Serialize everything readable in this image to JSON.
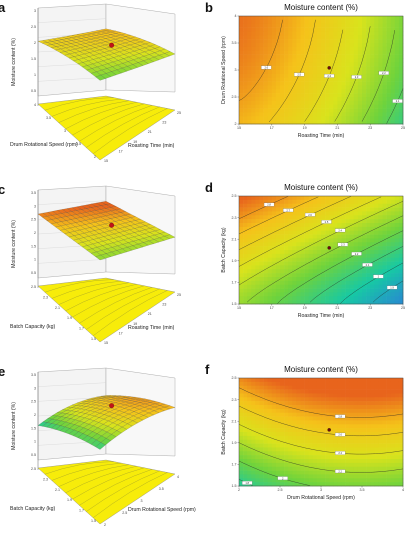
{
  "colors": {
    "high": "#e8641c",
    "mid_high": "#f5c21a",
    "mid": "#d9e31c",
    "mid_low": "#6fd33c",
    "low": "#17c9a4",
    "lowest": "#2a7fd8",
    "floor": "#f7ec0a",
    "point": "#c0141a"
  },
  "chart_data": [
    {
      "panel": "a",
      "type": "surface3d",
      "zlabel": "Moisture content (%)",
      "xlabel": "Roasting Time (min)",
      "ylabel": "Drum Rotational Speed (rpm)",
      "x_ticks": [
        "15",
        "17",
        "19",
        "21",
        "23",
        "25"
      ],
      "y_ticks": [
        "2",
        "2.5",
        "3",
        "3.5",
        "4"
      ],
      "z_ticks": [
        "3",
        "2.5",
        "2",
        "1.5",
        "1",
        "0.5"
      ]
    },
    {
      "panel": "b",
      "type": "contour",
      "title": "Moisture content (%)",
      "xlabel": "Roasting Time (min)",
      "ylabel": "Drum Rotational Speed (rpm)",
      "x_ticks": [
        "15",
        "17",
        "19",
        "21",
        "23",
        "25"
      ],
      "y_ticks": [
        "2",
        "2.5",
        "3",
        "3.5",
        "4"
      ],
      "contour_labels": [
        "2.6",
        "2.5",
        "2.4",
        "2.3",
        "2.2",
        "2.1",
        "2",
        "1.9"
      ]
    },
    {
      "panel": "c",
      "type": "surface3d",
      "zlabel": "Moisture content (%)",
      "xlabel": "Roasting Time (min)",
      "ylabel": "Batch Capacity (kg)",
      "x_ticks": [
        "15",
        "17",
        "19",
        "21",
        "23",
        "25"
      ],
      "y_ticks": [
        "1.5",
        "1.7",
        "1.9",
        "2.1",
        "2.3",
        "2.5"
      ],
      "z_ticks": [
        "3.5",
        "3",
        "2.5",
        "2",
        "1.5",
        "1",
        "0.5"
      ]
    },
    {
      "panel": "d",
      "type": "contour",
      "title": "Moisture content (%)",
      "xlabel": "Roasting Time (min)",
      "ylabel": "Batch Capacity (kg)",
      "x_ticks": [
        "15",
        "17",
        "19",
        "21",
        "23",
        "25"
      ],
      "y_ticks": [
        "1.5",
        "1.7",
        "1.9",
        "2.1",
        "2.3",
        "2.5"
      ],
      "contour_labels": [
        "2.8",
        "2.7",
        "2.6",
        "2.5",
        "2.4",
        "2.3",
        "2.2",
        "2.1",
        "2",
        "1.9"
      ]
    },
    {
      "panel": "e",
      "type": "surface3d",
      "zlabel": "Moisture content (%)",
      "xlabel": "Drum Rotational Speed (rpm)",
      "ylabel": "Batch Capacity (kg)",
      "x_ticks": [
        "2",
        "2.5",
        "3",
        "3.5",
        "4"
      ],
      "y_ticks": [
        "1.5",
        "1.7",
        "1.9",
        "2.1",
        "2.3",
        "2.5"
      ],
      "z_ticks": [
        "3.5",
        "3",
        "2.5",
        "2",
        "1.5",
        "1",
        "0.5"
      ]
    },
    {
      "panel": "f",
      "type": "contour",
      "title": "Moisture content (%)",
      "xlabel": "Drum Rotational Speed (rpm)",
      "ylabel": "Batch Capacity (kg)",
      "x_ticks": [
        "2",
        "2.5",
        "3",
        "3.5",
        "4"
      ],
      "y_ticks": [
        "1.5",
        "1.7",
        "1.9",
        "2.1",
        "2.3",
        "2.5"
      ],
      "contour_labels": [
        "2.8",
        "2.6",
        "2.4",
        "2.2",
        "2",
        "1.8",
        "1.6"
      ]
    }
  ]
}
